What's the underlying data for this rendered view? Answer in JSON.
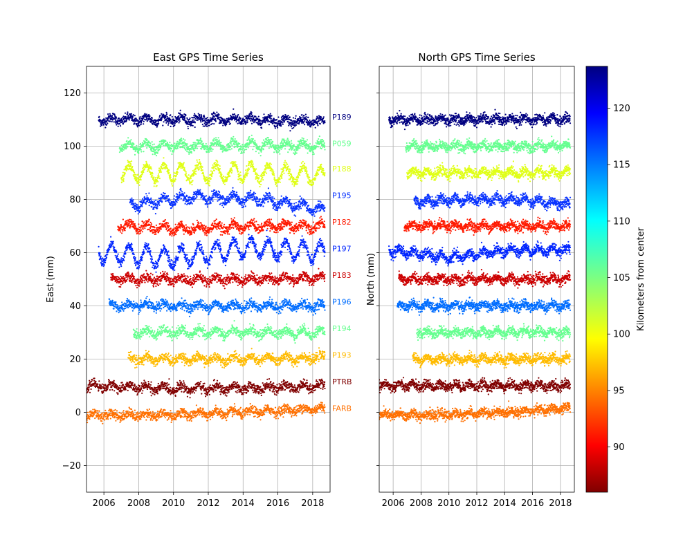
{
  "chart_data": [
    {
      "type": "scatter",
      "title": "East GPS Time Series",
      "xlabel": "",
      "ylabel": "East (mm)",
      "xlim": [
        2005.0,
        2019.0
      ],
      "ylim": [
        -30,
        130
      ],
      "xticks": [
        2006,
        2008,
        2010,
        2012,
        2014,
        2016,
        2018
      ],
      "yticks": [
        -20,
        0,
        20,
        40,
        60,
        80,
        100,
        120
      ],
      "ytick_labels": [
        "−20",
        "0",
        "20",
        "40",
        "60",
        "80",
        "100",
        "120"
      ],
      "grid": true,
      "series": [
        {
          "name": "P189",
          "start": 2005.7,
          "end": 2018.7,
          "offset": 110,
          "seasonal_amp": 1.0,
          "trend": [
            0,
            0,
            0,
            -1
          ],
          "color": "#000080",
          "km": 123.5
        },
        {
          "name": "P059",
          "start": 2006.9,
          "end": 2018.7,
          "offset": 100,
          "seasonal_amp": 1.3,
          "trend": [
            0,
            0,
            0.5,
            0
          ],
          "color": "#66ff90",
          "km": 105.5
        },
        {
          "name": "P188",
          "start": 2007.0,
          "end": 2018.7,
          "offset": 90,
          "seasonal_amp": 3.0,
          "trend": [
            0,
            0,
            0,
            -1
          ],
          "color": "#e0ff17",
          "km": 99.0
        },
        {
          "name": "P195",
          "start": 2007.5,
          "end": 2018.7,
          "offset": 78,
          "seasonal_amp": 1.5,
          "trend": [
            0,
            3,
            2,
            -2
          ],
          "color": "#0a34ff",
          "km": 118.5
        },
        {
          "name": "P182",
          "start": 2006.8,
          "end": 2018.7,
          "offset": 70,
          "seasonal_amp": 1.2,
          "trend": [
            0,
            -1,
            0,
            0
          ],
          "color": "#ff1a00",
          "km": 89.0
        },
        {
          "name": "P197",
          "start": 2005.7,
          "end": 2018.7,
          "offset": 60,
          "seasonal_amp": 3.5,
          "trend": [
            0,
            -2,
            2,
            0
          ],
          "color": "#0025ff",
          "km": 120.0
        },
        {
          "name": "P183",
          "start": 2006.4,
          "end": 2018.7,
          "offset": 50,
          "seasonal_amp": 1.0,
          "trend": [
            0,
            0,
            0,
            0.5
          ],
          "color": "#cc0000",
          "km": 88.0
        },
        {
          "name": "P196",
          "start": 2006.3,
          "end": 2018.7,
          "offset": 40,
          "seasonal_amp": 1.0,
          "trend": [
            0,
            0,
            0,
            0
          ],
          "color": "#006dff",
          "km": 114.5
        },
        {
          "name": "P194",
          "start": 2007.7,
          "end": 2018.7,
          "offset": 30,
          "seasonal_amp": 1.2,
          "trend": [
            0,
            0,
            0,
            0
          ],
          "color": "#66ff90",
          "km": 105.5
        },
        {
          "name": "P193",
          "start": 2007.4,
          "end": 2018.7,
          "offset": 20,
          "seasonal_amp": 1.0,
          "trend": [
            0,
            0,
            0,
            0.5
          ],
          "color": "#ffbb00",
          "km": 96.5
        },
        {
          "name": "PTRB",
          "start": 2005.0,
          "end": 2018.7,
          "offset": 10,
          "seasonal_amp": 1.0,
          "trend": [
            0,
            -1,
            -1,
            0
          ],
          "color": "#800000",
          "km": 86.5
        },
        {
          "name": "FARB",
          "start": 2005.0,
          "end": 2018.7,
          "offset": 0,
          "seasonal_amp": 0.8,
          "trend": [
            -1,
            -1,
            0,
            1.5
          ],
          "color": "#ff7000",
          "km": 93.5
        }
      ],
      "station_labels": [
        {
          "text": "P189",
          "y": 111,
          "color": "#000080"
        },
        {
          "text": "P059",
          "y": 101,
          "color": "#66ff90"
        },
        {
          "text": "P188",
          "y": 91.5,
          "color": "#e0ff17"
        },
        {
          "text": "P195",
          "y": 81.5,
          "color": "#0a34ff"
        },
        {
          "text": "P182",
          "y": 71.5,
          "color": "#ff1a00"
        },
        {
          "text": "P197",
          "y": 61.5,
          "color": "#0025ff"
        },
        {
          "text": "P183",
          "y": 51.5,
          "color": "#cc0000"
        },
        {
          "text": "P196",
          "y": 41.5,
          "color": "#006dff"
        },
        {
          "text": "P194",
          "y": 31.5,
          "color": "#66ff90"
        },
        {
          "text": "P193",
          "y": 21.5,
          "color": "#ffbb00"
        },
        {
          "text": "PTRB",
          "y": 11.5,
          "color": "#800000"
        },
        {
          "text": "FARB",
          "y": 1.5,
          "color": "#ff7000"
        }
      ]
    },
    {
      "type": "scatter",
      "title": "North GPS Time Series",
      "xlabel": "",
      "ylabel": "North (mm)",
      "xlim": [
        2005.0,
        2019.0
      ],
      "ylim": [
        -30,
        130
      ],
      "xticks": [
        2006,
        2008,
        2010,
        2012,
        2014,
        2016,
        2018
      ],
      "grid": true,
      "series": [
        {
          "name": "P189",
          "start": 2005.7,
          "end": 2018.7,
          "offset": 110,
          "seasonal_amp": 0.8,
          "trend": [
            0,
            0,
            0,
            0
          ],
          "color": "#000080"
        },
        {
          "name": "P059",
          "start": 2006.9,
          "end": 2018.7,
          "offset": 100,
          "seasonal_amp": 0.8,
          "trend": [
            0,
            0,
            0,
            0
          ],
          "color": "#66ff90"
        },
        {
          "name": "P188",
          "start": 2007.0,
          "end": 2018.7,
          "offset": 90,
          "seasonal_amp": 1.0,
          "trend": [
            0,
            0,
            0,
            0
          ],
          "color": "#e0ff17"
        },
        {
          "name": "P195",
          "start": 2007.5,
          "end": 2018.7,
          "offset": 79,
          "seasonal_amp": 1.0,
          "trend": [
            0,
            1,
            1,
            -1
          ],
          "color": "#0a34ff"
        },
        {
          "name": "P182",
          "start": 2006.8,
          "end": 2018.7,
          "offset": 70,
          "seasonal_amp": 0.8,
          "trend": [
            0,
            0,
            0,
            0
          ],
          "color": "#ff1a00"
        },
        {
          "name": "P197",
          "start": 2005.7,
          "end": 2018.7,
          "offset": 61,
          "seasonal_amp": 1.2,
          "trend": [
            0,
            -3,
            0,
            0
          ],
          "color": "#0025ff"
        },
        {
          "name": "P183",
          "start": 2006.4,
          "end": 2018.7,
          "offset": 50,
          "seasonal_amp": 0.8,
          "trend": [
            0,
            0,
            0,
            0
          ],
          "color": "#cc0000"
        },
        {
          "name": "P196",
          "start": 2006.3,
          "end": 2018.7,
          "offset": 40,
          "seasonal_amp": 0.8,
          "trend": [
            0,
            0,
            0,
            0
          ],
          "color": "#006dff"
        },
        {
          "name": "P194",
          "start": 2007.7,
          "end": 2018.7,
          "offset": 30,
          "seasonal_amp": 0.8,
          "trend": [
            0,
            0,
            0,
            0
          ],
          "color": "#66ff90"
        },
        {
          "name": "P193",
          "start": 2007.4,
          "end": 2018.7,
          "offset": 20,
          "seasonal_amp": 0.8,
          "trend": [
            0,
            0,
            0,
            0
          ],
          "color": "#ffbb00"
        },
        {
          "name": "PTRB",
          "start": 2005.0,
          "end": 2018.7,
          "offset": 10,
          "seasonal_amp": 0.8,
          "trend": [
            0,
            0,
            0,
            0
          ],
          "color": "#800000"
        },
        {
          "name": "FARB",
          "start": 2005.0,
          "end": 2018.7,
          "offset": 0,
          "seasonal_amp": 0.6,
          "trend": [
            -1,
            -1,
            0,
            1.5
          ],
          "color": "#ff7000"
        }
      ]
    }
  ],
  "colorbar": {
    "label": "Kilometers from center",
    "range": [
      86,
      123.7
    ],
    "ticks": [
      90,
      95,
      100,
      105,
      110,
      115,
      120
    ],
    "colormap": "jet"
  }
}
